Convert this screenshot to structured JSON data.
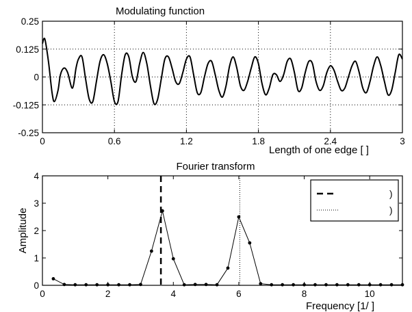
{
  "chart_data": [
    {
      "type": "line",
      "title": "Modulating function",
      "xlabel": "Length of one edge [    ]",
      "ylabel": "",
      "xlim": [
        0,
        3
      ],
      "ylim": [
        -0.25,
        0.25
      ],
      "xticks": [
        0,
        0.6,
        1.2,
        1.8,
        2.4,
        3
      ],
      "xtick_labels": [
        "0",
        "0.6",
        "1.2",
        "1.8",
        "2.4",
        "3"
      ],
      "yticks": [
        0.25,
        0.125,
        0,
        -0.125,
        -0.25
      ],
      "ytick_labels": [
        "0.25",
        "0.125",
        "0",
        "-0.125",
        "-0.25"
      ],
      "grid": true,
      "series": [
        {
          "x": [
            0,
            0.02,
            0.05,
            0.08,
            0.1,
            0.13,
            0.15,
            0.18,
            0.21,
            0.25,
            0.28,
            0.3,
            0.33,
            0.36,
            0.39,
            0.42,
            0.45,
            0.48,
            0.51,
            0.54,
            0.57,
            0.6,
            0.63,
            0.66,
            0.69,
            0.72,
            0.75,
            0.78,
            0.81,
            0.84,
            0.87,
            0.9,
            0.93,
            0.96,
            0.99,
            1.02,
            1.05,
            1.08,
            1.11,
            1.14,
            1.17,
            1.2,
            1.23,
            1.26,
            1.29,
            1.32,
            1.35,
            1.38,
            1.41,
            1.44,
            1.47,
            1.5,
            1.53,
            1.56,
            1.59,
            1.62,
            1.65,
            1.68,
            1.71,
            1.74,
            1.77,
            1.8,
            1.83,
            1.86,
            1.89,
            1.92,
            1.95,
            1.98,
            2.01,
            2.04,
            2.07,
            2.1,
            2.13,
            2.16,
            2.19,
            2.22,
            2.25,
            2.28,
            2.31,
            2.34,
            2.37,
            2.4,
            2.43,
            2.46,
            2.49,
            2.52,
            2.55,
            2.58,
            2.61,
            2.64,
            2.67,
            2.7,
            2.73,
            2.76,
            2.79,
            2.82,
            2.85,
            2.88,
            2.91,
            2.94,
            2.97,
            3.0
          ],
          "y": [
            0.15,
            0.17,
            0.07,
            -0.07,
            -0.11,
            -0.06,
            0.01,
            0.04,
            0.02,
            -0.05,
            0.04,
            0.08,
            0.09,
            -0.01,
            -0.1,
            -0.11,
            -0.02,
            0.07,
            0.1,
            0.06,
            -0.02,
            -0.11,
            -0.11,
            0.01,
            0.1,
            0.09,
            0.0,
            -0.02,
            0.06,
            0.11,
            0.06,
            -0.04,
            -0.12,
            -0.1,
            -0.01,
            0.08,
            0.09,
            0.04,
            -0.02,
            -0.03,
            0.02,
            0.08,
            0.09,
            0.01,
            -0.07,
            -0.07,
            0.0,
            0.06,
            0.07,
            0.01,
            -0.06,
            -0.09,
            -0.04,
            0.05,
            0.09,
            0.04,
            -0.04,
            -0.06,
            -0.02,
            0.04,
            0.09,
            0.06,
            -0.03,
            -0.08,
            -0.05,
            0.01,
            0.01,
            -0.02,
            0.01,
            0.07,
            0.08,
            0.02,
            -0.06,
            -0.05,
            0.02,
            0.07,
            0.06,
            -0.02,
            -0.06,
            -0.04,
            0.02,
            0.05,
            0.03,
            -0.02,
            -0.06,
            -0.05,
            0.0,
            0.05,
            0.07,
            0.02,
            -0.05,
            -0.07,
            -0.02,
            0.05,
            0.09,
            0.05,
            -0.02,
            -0.08,
            -0.06,
            0.02,
            0.1,
            0.08
          ]
        }
      ]
    },
    {
      "type": "line",
      "title": "Fourier transform",
      "xlabel": "Frequency [1/    ]",
      "ylabel": "Amplitude",
      "xlim": [
        0,
        11
      ],
      "ylim": [
        0,
        4
      ],
      "xticks": [
        0,
        2,
        4,
        6,
        8,
        10
      ],
      "xtick_labels": [
        "0",
        "2",
        "4",
        "6",
        "8",
        "10"
      ],
      "yticks": [
        0,
        1,
        2,
        3,
        4
      ],
      "ytick_labels": [
        "0",
        "1",
        "2",
        "3",
        "4"
      ],
      "grid": false,
      "series": [
        {
          "x": [
            0.333,
            0.667,
            1.0,
            1.333,
            1.667,
            2.0,
            2.333,
            2.667,
            3.0,
            3.333,
            3.667,
            4.0,
            4.333,
            4.667,
            5.0,
            5.333,
            5.667,
            6.0,
            6.333,
            6.667,
            7.0,
            7.333,
            7.667,
            8.0,
            8.333,
            8.667,
            9.0,
            9.333,
            9.667,
            10.0,
            10.333,
            10.667,
            11.0
          ],
          "y": [
            0.24,
            0.03,
            0.02,
            0.02,
            0.02,
            0.02,
            0.02,
            0.02,
            0.03,
            1.25,
            2.72,
            0.97,
            0.02,
            0.03,
            0.03,
            0.02,
            0.63,
            2.5,
            1.55,
            0.06,
            0.02,
            0.02,
            0.02,
            0.02,
            0.02,
            0.02,
            0.02,
            0.02,
            0.02,
            0.02,
            0.02,
            0.02,
            0.02
          ]
        }
      ],
      "vlines": [
        {
          "x": 3.62,
          "style": "dashed"
        },
        {
          "x": 6.03,
          "style": "dotted"
        }
      ],
      "legend": {
        "position": "top-right",
        "entries": [
          {
            "style": "dashed",
            "label": ")"
          },
          {
            "style": "dotted",
            "label": ")"
          }
        ]
      }
    }
  ]
}
